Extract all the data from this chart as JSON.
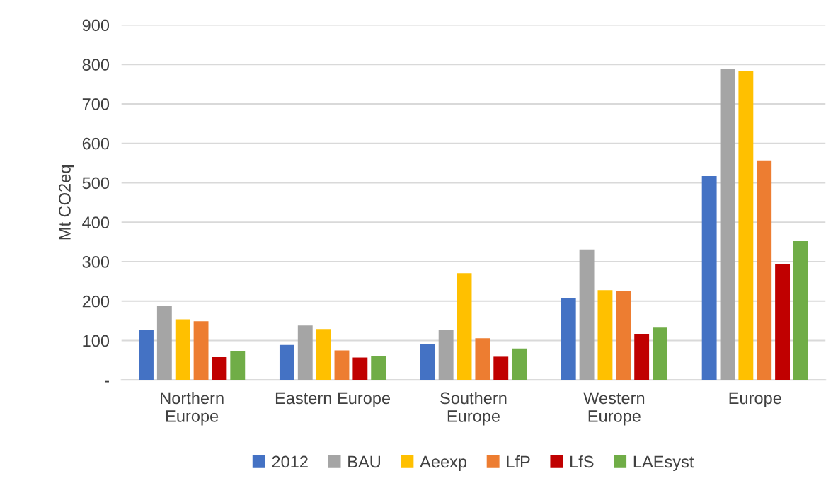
{
  "chart_data": {
    "type": "bar",
    "ylabel": "Mt CO2eq",
    "categories": [
      "Northern\nEurope",
      "Eastern Europe",
      "Southern\nEurope",
      "Western\nEurope",
      "Europe"
    ],
    "series": [
      {
        "name": "2012",
        "color": "#4472c4",
        "values": [
          126,
          89,
          92,
          208,
          517
        ]
      },
      {
        "name": "BAU",
        "color": "#a5a5a5",
        "values": [
          189,
          138,
          126,
          331,
          789
        ]
      },
      {
        "name": "Aeexp",
        "color": "#ffc000",
        "values": [
          154,
          129,
          271,
          228,
          784
        ]
      },
      {
        "name": "LfP",
        "color": "#ed7d31",
        "values": [
          149,
          75,
          106,
          226,
          557
        ]
      },
      {
        "name": "LfS",
        "color": "#c00000",
        "values": [
          58,
          57,
          59,
          117,
          294
        ]
      },
      {
        "name": "LAEsyst",
        "color": "#70ad47",
        "values": [
          73,
          61,
          80,
          133,
          352
        ]
      }
    ],
    "ylim": [
      0,
      900
    ],
    "yticks": [
      {
        "value": 0,
        "label": "-"
      },
      100,
      200,
      300,
      400,
      500,
      600,
      700,
      800,
      900
    ],
    "grid": "y",
    "legend": "bottom"
  }
}
